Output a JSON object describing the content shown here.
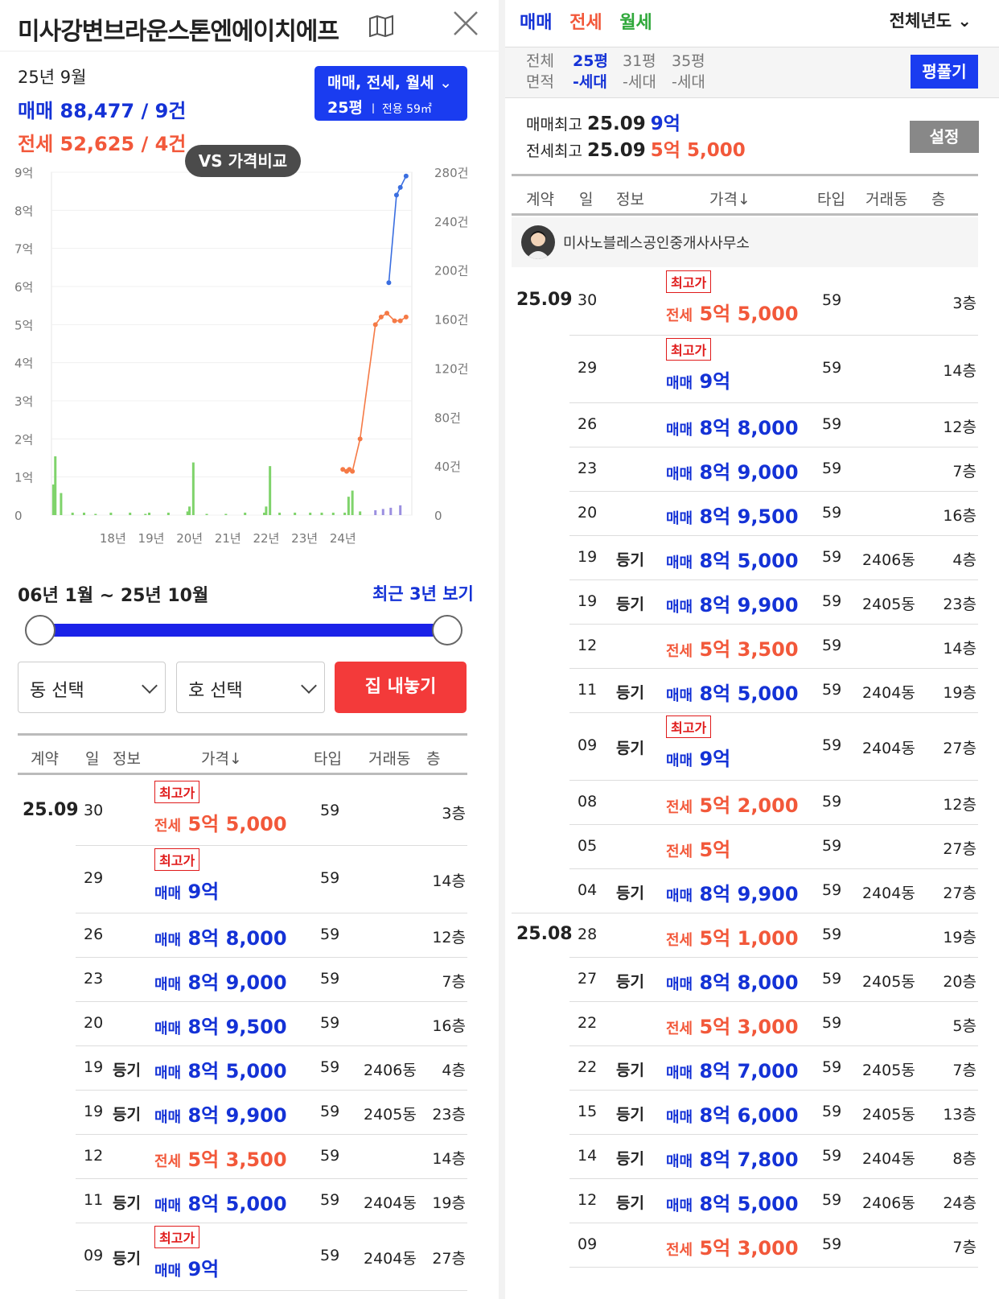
{
  "left": {
    "title": "미사강변브라운스톤엔에이치에프",
    "summary": {
      "ym": "25년 9월",
      "sale": "매매 88,477 / 9건",
      "jeonse": "전세 52,625 / 4건"
    },
    "filter": {
      "line1": "매매, 전세, 월세",
      "size": "25평",
      "area": "전용 59㎡"
    },
    "vs_button": "VS 가격비교",
    "range_text": "06년 1월 ~ 25년 10월",
    "recent_link": "최근 3년 보기",
    "dong_select": "동 선택",
    "ho_select": "호 선택",
    "sell_button": "집 내놓기"
  },
  "table_headers": {
    "contract": "계약",
    "day": "일",
    "info": "정보",
    "price": "가격↓",
    "type": "타입",
    "dong": "거래동",
    "floor": "층"
  },
  "right": {
    "tabs": {
      "sale": "매매",
      "jeonse": "전세",
      "wolse": "월세"
    },
    "year_select": "전체년도",
    "ptypes": [
      {
        "a": "전체",
        "b": "면적"
      },
      {
        "a": "25평",
        "b": "-세대"
      },
      {
        "a": "31평",
        "b": "-세대"
      },
      {
        "a": "35평",
        "b": "-세대"
      }
    ],
    "pyung_button": "평풀기",
    "max_sale_label": "매매최고",
    "max_sale_date": "25.09",
    "max_sale_price": "9억",
    "max_jeonse_label": "전세최고",
    "max_jeonse_date": "25.09",
    "max_jeonse_price": "5억 5,000",
    "settings_button": "설정",
    "agent_name": "미사노블레스공인중개사사무소"
  },
  "transactions": [
    {
      "ym": "25.09",
      "day": "30",
      "info": "",
      "top": true,
      "kind": "전세",
      "price": "5억 5,000",
      "type": "59",
      "dong": "",
      "floor": "3층"
    },
    {
      "ym": "",
      "day": "29",
      "info": "",
      "top": true,
      "kind": "매매",
      "price": "9억",
      "type": "59",
      "dong": "",
      "floor": "14층"
    },
    {
      "ym": "",
      "day": "26",
      "info": "",
      "top": false,
      "kind": "매매",
      "price": "8억 8,000",
      "type": "59",
      "dong": "",
      "floor": "12층"
    },
    {
      "ym": "",
      "day": "23",
      "info": "",
      "top": false,
      "kind": "매매",
      "price": "8억 9,000",
      "type": "59",
      "dong": "",
      "floor": "7층"
    },
    {
      "ym": "",
      "day": "20",
      "info": "",
      "top": false,
      "kind": "매매",
      "price": "8억 9,500",
      "type": "59",
      "dong": "",
      "floor": "16층"
    },
    {
      "ym": "",
      "day": "19",
      "info": "등기",
      "top": false,
      "kind": "매매",
      "price": "8억 5,000",
      "type": "59",
      "dong": "2406동",
      "floor": "4층"
    },
    {
      "ym": "",
      "day": "19",
      "info": "등기",
      "top": false,
      "kind": "매매",
      "price": "8억 9,900",
      "type": "59",
      "dong": "2405동",
      "floor": "23층"
    },
    {
      "ym": "",
      "day": "12",
      "info": "",
      "top": false,
      "kind": "전세",
      "price": "5억 3,500",
      "type": "59",
      "dong": "",
      "floor": "14층"
    },
    {
      "ym": "",
      "day": "11",
      "info": "등기",
      "top": false,
      "kind": "매매",
      "price": "8억 5,000",
      "type": "59",
      "dong": "2404동",
      "floor": "19층"
    },
    {
      "ym": "",
      "day": "09",
      "info": "등기",
      "top": true,
      "kind": "매매",
      "price": "9억",
      "type": "59",
      "dong": "2404동",
      "floor": "27층"
    },
    {
      "ym": "",
      "day": "08",
      "info": "",
      "top": false,
      "kind": "전세",
      "price": "5억 2,000",
      "type": "59",
      "dong": "",
      "floor": "12층"
    },
    {
      "ym": "",
      "day": "05",
      "info": "",
      "top": false,
      "kind": "전세",
      "price": "5억",
      "type": "59",
      "dong": "",
      "floor": "27층"
    },
    {
      "ym": "",
      "day": "04",
      "info": "등기",
      "top": false,
      "kind": "매매",
      "price": "8억 9,900",
      "type": "59",
      "dong": "2404동",
      "floor": "27층"
    },
    {
      "ym": "25.08",
      "day": "28",
      "info": "",
      "top": false,
      "kind": "전세",
      "price": "5억 1,000",
      "type": "59",
      "dong": "",
      "floor": "19층"
    },
    {
      "ym": "",
      "day": "27",
      "info": "등기",
      "top": false,
      "kind": "매매",
      "price": "8억 8,000",
      "type": "59",
      "dong": "2405동",
      "floor": "20층"
    },
    {
      "ym": "",
      "day": "22",
      "info": "",
      "top": false,
      "kind": "전세",
      "price": "5억 3,000",
      "type": "59",
      "dong": "",
      "floor": "5층"
    },
    {
      "ym": "",
      "day": "22",
      "info": "등기",
      "top": false,
      "kind": "매매",
      "price": "8억 7,000",
      "type": "59",
      "dong": "2405동",
      "floor": "7층"
    },
    {
      "ym": "",
      "day": "15",
      "info": "등기",
      "top": false,
      "kind": "매매",
      "price": "8억 6,000",
      "type": "59",
      "dong": "2405동",
      "floor": "13층"
    },
    {
      "ym": "",
      "day": "14",
      "info": "등기",
      "top": false,
      "kind": "매매",
      "price": "8억 7,800",
      "type": "59",
      "dong": "2404동",
      "floor": "8층"
    },
    {
      "ym": "",
      "day": "12",
      "info": "등기",
      "top": false,
      "kind": "매매",
      "price": "8억 5,000",
      "type": "59",
      "dong": "2406동",
      "floor": "24층"
    },
    {
      "ym": "",
      "day": "09",
      "info": "",
      "top": false,
      "kind": "전세",
      "price": "5억 3,000",
      "type": "59",
      "dong": "",
      "floor": "7층"
    }
  ],
  "top_label": "최고가",
  "colors": {
    "sale": "#1432d6",
    "jeonse": "#f2583a",
    "wolse": "#2fa83a",
    "accent": "#1a3cf0",
    "sell": "#f33a3a"
  },
  "chart_data": {
    "type": "line",
    "x_ticks": [
      "18년",
      "19년",
      "20년",
      "21년",
      "22년",
      "23년",
      "24년"
    ],
    "y_left_ticks": [
      "9억",
      "8억",
      "7억",
      "6억",
      "5억",
      "4억",
      "3억",
      "2억",
      "1억",
      "0"
    ],
    "y_right_ticks": [
      "280건",
      "240건",
      "200건",
      "160건",
      "120건",
      "80건",
      "40건",
      "0"
    ],
    "ylim_price": [
      0,
      9
    ],
    "ylim_volume": [
      0,
      280
    ],
    "series": [
      {
        "name": "매매",
        "x": [
          2025.25,
          2025.45,
          2025.55,
          2025.7
        ],
        "values": [
          6.1,
          8.4,
          8.6,
          8.9
        ]
      },
      {
        "name": "전세",
        "x": [
          2024.05,
          2024.15,
          2024.22,
          2024.3,
          2024.5,
          2024.9,
          2025.05,
          2025.2,
          2025.4,
          2025.55,
          2025.7
        ],
        "values": [
          1.2,
          1.15,
          1.2,
          1.15,
          2.0,
          5.0,
          5.2,
          5.3,
          5.1,
          5.1,
          5.2
        ]
      }
    ],
    "volume_bars": [
      {
        "x": 2016.5,
        "v": 25
      },
      {
        "x": 2016.55,
        "v": 48
      },
      {
        "x": 2016.7,
        "v": 18
      },
      {
        "x": 2017.0,
        "v": 2
      },
      {
        "x": 2017.3,
        "v": 2
      },
      {
        "x": 2017.6,
        "v": 1
      },
      {
        "x": 2018.0,
        "v": 2
      },
      {
        "x": 2018.5,
        "v": 2
      },
      {
        "x": 2018.9,
        "v": 1
      },
      {
        "x": 2019.0,
        "v": 2
      },
      {
        "x": 2019.5,
        "v": 2
      },
      {
        "x": 2020.0,
        "v": 3
      },
      {
        "x": 2020.05,
        "v": 7
      },
      {
        "x": 2020.15,
        "v": 43
      },
      {
        "x": 2020.5,
        "v": 1
      },
      {
        "x": 2021.0,
        "v": 1
      },
      {
        "x": 2021.5,
        "v": 2
      },
      {
        "x": 2022.0,
        "v": 2
      },
      {
        "x": 2022.05,
        "v": 7
      },
      {
        "x": 2022.15,
        "v": 40
      },
      {
        "x": 2022.4,
        "v": 2
      },
      {
        "x": 2022.8,
        "v": 2
      },
      {
        "x": 2023.2,
        "v": 2
      },
      {
        "x": 2023.5,
        "v": 2
      },
      {
        "x": 2023.8,
        "v": 2
      },
      {
        "x": 2024.1,
        "v": 2
      },
      {
        "x": 2024.2,
        "v": 15
      },
      {
        "x": 2024.3,
        "v": 20
      },
      {
        "x": 2024.5,
        "v": 3
      },
      {
        "x": 2024.9,
        "v": 4
      },
      {
        "x": 2025.1,
        "v": 5
      },
      {
        "x": 2025.3,
        "v": 6
      },
      {
        "x": 2025.55,
        "v": 8
      }
    ]
  }
}
